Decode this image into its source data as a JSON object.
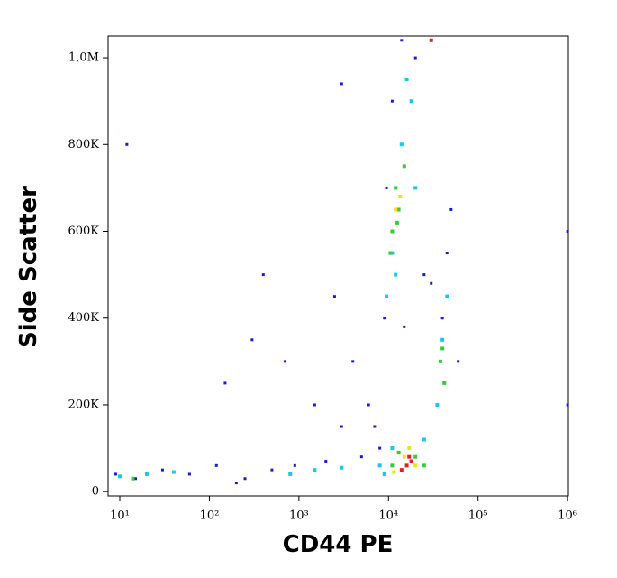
{
  "chart_data": {
    "type": "scatter",
    "x_label": "CD44 PE",
    "y_label": "Side Scatter",
    "x_scale": "log",
    "xlim": [
      7.4,
      1020000
    ],
    "ylim": [
      -10000,
      1050000
    ],
    "xticks": [
      {
        "value": 10,
        "label": "10¹"
      },
      {
        "value": 100,
        "label": "10²"
      },
      {
        "value": 1000,
        "label": "10³"
      },
      {
        "value": 10000,
        "label": "10⁴"
      },
      {
        "value": 100000,
        "label": "10⁵"
      },
      {
        "value": 1000000,
        "label": "10⁶"
      }
    ],
    "yticks": [
      0,
      {
        "value": 200000,
        "label": "200K"
      },
      {
        "value": 400000,
        "label": "400K"
      },
      {
        "value": 600000,
        "label": "600K"
      },
      {
        "value": 800000,
        "label": "800K"
      },
      {
        "value": 1000000,
        "label": "1,0M"
      }
    ],
    "series": [
      {
        "color": "#1a1ad0",
        "x": [
          9,
          15,
          30,
          60,
          120,
          250,
          500,
          900,
          2000,
          3000,
          5000,
          300,
          150,
          700,
          1500,
          8000,
          9000,
          9500,
          11000,
          14000,
          20000,
          25000,
          40000,
          45000,
          50000,
          60000,
          400,
          200,
          12,
          3000,
          2500,
          4000,
          6000,
          7000,
          15000,
          30000,
          1000000,
          1000000
        ],
        "y": [
          40000,
          30000,
          50000,
          40000,
          60000,
          30000,
          50000,
          60000,
          70000,
          150000,
          80000,
          350000,
          250000,
          300000,
          200000,
          100000,
          400000,
          700000,
          900000,
          1040000,
          1000000,
          500000,
          400000,
          550000,
          650000,
          300000,
          500000,
          20000,
          800000,
          940000,
          450000,
          300000,
          200000,
          150000,
          380000,
          480000,
          600000,
          200000
        ]
      },
      {
        "color": "#19c8e6",
        "x": [
          10,
          20,
          40,
          800,
          1500,
          3000,
          9000,
          11000,
          25000,
          35000,
          40000,
          45000,
          9500,
          11000,
          14000,
          18000,
          20000,
          12000,
          16000,
          8000
        ],
        "y": [
          35000,
          40000,
          45000,
          40000,
          50000,
          55000,
          40000,
          100000,
          120000,
          200000,
          350000,
          450000,
          450000,
          550000,
          800000,
          900000,
          700000,
          500000,
          950000,
          60000
        ]
      },
      {
        "color": "#3cc83c",
        "x": [
          14,
          11000,
          12000,
          13000,
          15000,
          10500,
          12500,
          13000,
          20000,
          11000,
          38000,
          42000,
          40000,
          25000
        ],
        "y": [
          30000,
          600000,
          700000,
          650000,
          750000,
          550000,
          620000,
          90000,
          80000,
          60000,
          300000,
          250000,
          330000,
          60000
        ]
      },
      {
        "color": "#e6e619",
        "x": [
          15000,
          12000,
          13500,
          20000,
          17000,
          11500
        ],
        "y": [
          80000,
          650000,
          680000,
          60000,
          100000,
          45000
        ]
      },
      {
        "color": "#e61e1e",
        "x": [
          16000,
          18000,
          14000,
          17000,
          30000
        ],
        "y": [
          60000,
          70000,
          50000,
          80000,
          1040000
        ]
      }
    ]
  }
}
